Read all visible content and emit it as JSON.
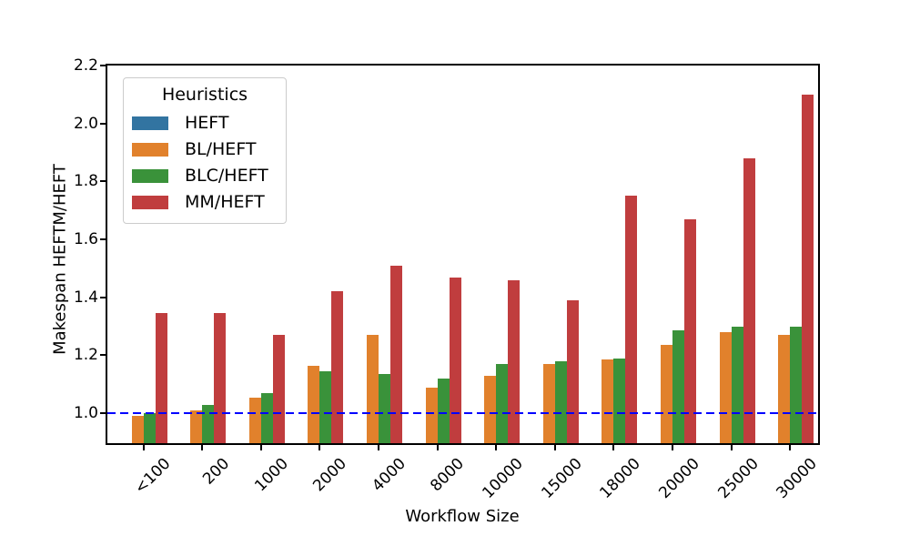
{
  "chart_data": {
    "type": "bar",
    "title": "",
    "xlabel": "Workflow Size",
    "ylabel": "Makespan HEFTM/HEFT",
    "categories": [
      "<100",
      "200",
      "1000",
      "2000",
      "4000",
      "8000",
      "10000",
      "15000",
      "18000",
      "20000",
      "25000",
      "30000"
    ],
    "series": [
      {
        "name": "HEFT",
        "color": "#3274a1",
        "bars_visible": false,
        "values": [
          1.0,
          1.0,
          1.0,
          1.0,
          1.0,
          1.0,
          1.0,
          1.0,
          1.0,
          1.0,
          1.0,
          1.0
        ]
      },
      {
        "name": "BL/HEFT",
        "color": "#e1812c",
        "bars_visible": true,
        "values": [
          0.99,
          1.01,
          1.055,
          1.165,
          1.27,
          1.09,
          1.13,
          1.17,
          1.185,
          1.235,
          1.28,
          1.27
        ]
      },
      {
        "name": "BLC/HEFT",
        "color": "#3a923a",
        "bars_visible": true,
        "values": [
          1.0,
          1.03,
          1.07,
          1.145,
          1.135,
          1.12,
          1.17,
          1.18,
          1.19,
          1.285,
          1.3,
          1.3
        ]
      },
      {
        "name": "MM/HEFT",
        "color": "#c03d3e",
        "bars_visible": true,
        "values": [
          1.345,
          1.345,
          1.27,
          1.42,
          1.51,
          1.47,
          1.46,
          1.39,
          1.75,
          1.67,
          1.88,
          2.1
        ]
      }
    ],
    "ylim": [
      0.897,
      2.2
    ],
    "yticks": [
      1.0,
      1.2,
      1.4,
      1.6,
      1.8,
      2.0,
      2.2
    ],
    "ytick_labels": [
      "1.0",
      "1.2",
      "1.4",
      "1.6",
      "1.8",
      "2.0",
      "2.2"
    ],
    "legend": {
      "title": "Heuristics",
      "position": "upper left"
    },
    "reference_line": {
      "y": 1.0,
      "color": "#0000ff",
      "style": "dashed"
    },
    "grid": false,
    "x_tick_rotation_deg": 45,
    "colors": {
      "spine": "#000000",
      "background": "#ffffff",
      "text": "#000000"
    }
  }
}
